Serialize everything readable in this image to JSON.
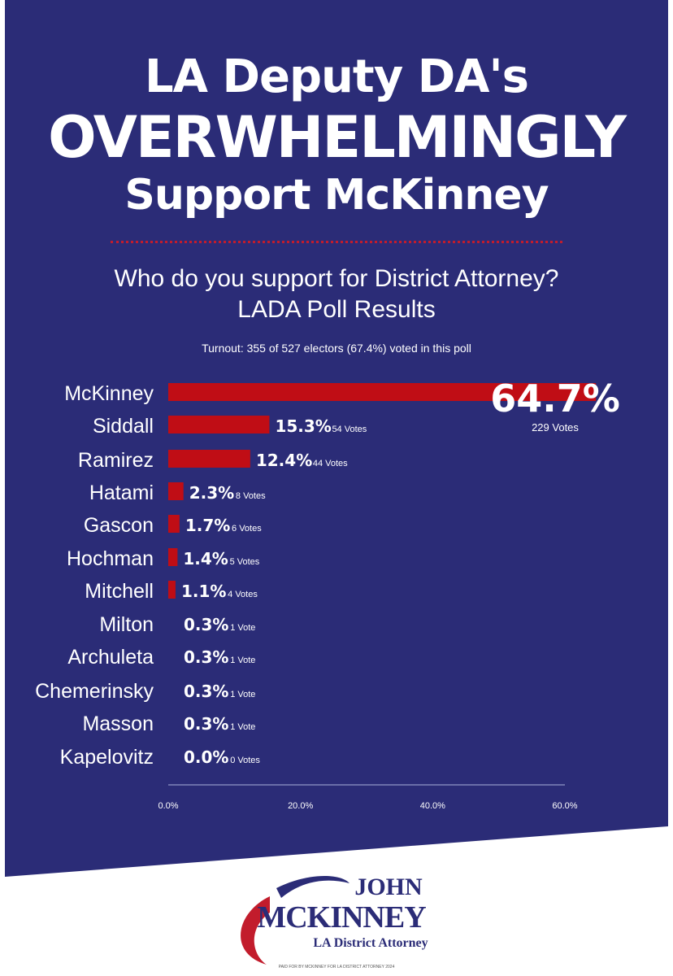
{
  "headline": {
    "line1": "LA Deputy DA's",
    "line2": "OVERWHELMINGLY",
    "line3": "Support McKinney"
  },
  "question": {
    "line1": "Who do you support for District Attorney?",
    "line2": "LADA Poll Results"
  },
  "turnout": "Turnout: 355 of 527 electors (67.4%) voted in this poll",
  "chart_data": {
    "type": "bar",
    "orientation": "horizontal",
    "categories": [
      "McKinney",
      "Siddall",
      "Ramirez",
      "Hatami",
      "Gascon",
      "Hochman",
      "Mitchell",
      "Milton",
      "Archuleta",
      "Chemerinsky",
      "Masson",
      "Kapelovitz"
    ],
    "values": [
      64.7,
      15.3,
      12.4,
      2.3,
      1.7,
      1.4,
      1.1,
      0.3,
      0.3,
      0.3,
      0.3,
      0.0
    ],
    "value_labels": [
      "64.7%",
      "15.3%",
      "12.4%",
      "2.3%",
      "1.7%",
      "1.4%",
      "1.1%",
      "0.3%",
      "0.3%",
      "0.3%",
      "0.3%",
      "0.0%"
    ],
    "vote_labels": [
      "229 Votes",
      "54 Votes",
      "44 Votes",
      "8 Votes",
      "6 Votes",
      "5 Votes",
      "4 Votes",
      "1 Vote",
      "1 Vote",
      "1 Vote",
      "1 Vote",
      "0 Votes"
    ],
    "xlim": [
      0,
      60
    ],
    "xticks": [
      "0.0%",
      "20.0%",
      "40.0%",
      "60.0%"
    ],
    "bars_shown_down_to": 1.1,
    "bar_color": "#c00d15",
    "background_color": "#2b2c77",
    "grid": false
  },
  "logo": {
    "first_name": "JOHN",
    "last_name": "MCKINNEY",
    "title": "LA District Attorney",
    "colors": {
      "navy": "#2b2c77",
      "red": "#c21c2c"
    }
  },
  "paid_for": "PAID FOR BY MCKINNEY FOR LA DISTRICT ATTORNEY 2024"
}
